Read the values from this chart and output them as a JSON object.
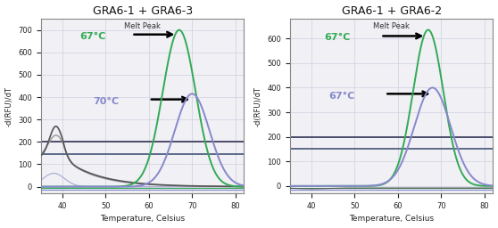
{
  "left_title": "GRA6-1 + GRA6-3",
  "right_title": "GRA6-1 + GRA6-2",
  "melt_peak_label": "Melt Peak",
  "xlabel": "Temperature, Celsius",
  "ylabel": "-d(RFU)/dT",
  "xlim": [
    35,
    82
  ],
  "left_ylim": [
    -30,
    750
  ],
  "right_ylim": [
    -30,
    680
  ],
  "left_yticks": [
    0,
    100,
    200,
    300,
    400,
    500,
    600,
    700
  ],
  "right_yticks": [
    0,
    100,
    200,
    300,
    400,
    500,
    600
  ],
  "left_hlines": [
    200,
    145
  ],
  "right_hlines": [
    200,
    150
  ],
  "left_ann1_text": "67°C",
  "left_ann2_text": "70°C",
  "right_ann1_text": "67°C",
  "right_ann2_text": "67°C",
  "green_color": "#33aa55",
  "blue_color": "#8888cc",
  "dark_gray": "#555555",
  "mid_gray": "#999999",
  "light_blue_line": "#7799bb",
  "hline_color1": "#333355",
  "hline_color2": "#445577",
  "bg_color": "#f0f0f5",
  "grid_color": "#d0d0e0",
  "border_color": "#888888"
}
